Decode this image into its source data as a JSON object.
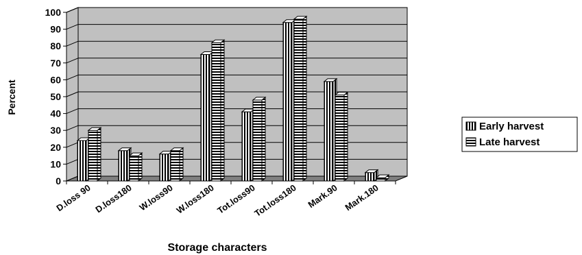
{
  "chart_data": {
    "type": "bar",
    "style": "3d-clustered-column",
    "title": "",
    "xlabel": "Storage characters",
    "ylabel": "Percent",
    "ylim": [
      0,
      100
    ],
    "yticks": [
      0,
      10,
      20,
      30,
      40,
      50,
      60,
      70,
      80,
      90,
      100
    ],
    "ytick_labels": [
      "0",
      "10",
      "20",
      "30",
      "40",
      "50",
      "60",
      "70",
      "80",
      "90",
      "100"
    ],
    "grid": true,
    "legend_position": "right",
    "categories": [
      "D.loss 90",
      "D.loss180",
      "W.loss90",
      "W.loss180",
      "Tot.loss90",
      "Tot.loss180",
      "Mark.90",
      "Mark.180"
    ],
    "series": [
      {
        "name": "Early harvest",
        "pattern": "vertical-stripes",
        "values": [
          24,
          18,
          16,
          75,
          41,
          94,
          59,
          5
        ]
      },
      {
        "name": "Late harvest",
        "pattern": "horizontal-stripes",
        "values": [
          30,
          15,
          18,
          82,
          48,
          96,
          51,
          2
        ]
      }
    ],
    "colors": {
      "wall": "#c0c0c0",
      "floor": "#808080",
      "bar_stripe": "#000000",
      "bar_fill": "#ffffff"
    }
  }
}
